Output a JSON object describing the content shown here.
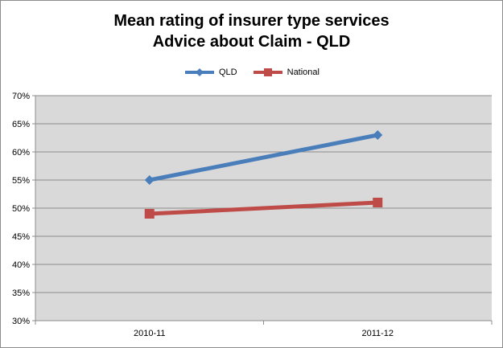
{
  "chart_data": {
    "type": "line",
    "title": "Mean rating of insurer type services",
    "subtitle": "Advice about Claim - QLD",
    "xlabel": "",
    "ylabel": "",
    "categories": [
      "2010-11",
      "2011-12"
    ],
    "ylim": [
      0.3,
      0.7
    ],
    "yticks": [
      "70%",
      "65%",
      "60%",
      "55%",
      "50%",
      "45%",
      "40%",
      "35%",
      "30%"
    ],
    "grid": true,
    "legend_position": "top",
    "series": [
      {
        "name": "QLD",
        "values": [
          0.55,
          0.63
        ],
        "color": "#4a7ebb",
        "marker": "diamond"
      },
      {
        "name": "National",
        "values": [
          0.49,
          0.51
        ],
        "color": "#be4b48",
        "marker": "square"
      }
    ]
  }
}
